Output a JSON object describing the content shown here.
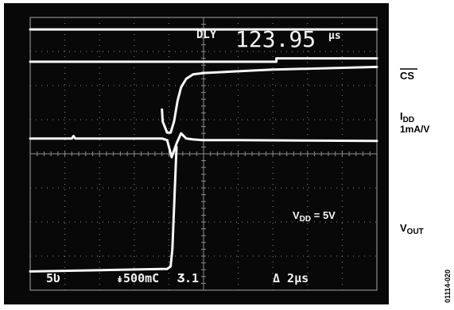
{
  "chart_data": {
    "type": "line",
    "title": "",
    "xlabel": "",
    "ylabel": "",
    "grid": true,
    "x_divisions": 10,
    "y_divisions": 8,
    "x_range": [
      0,
      10
    ],
    "y_range": [
      0,
      8
    ],
    "readout": {
      "label": "DLY",
      "value": "123.95",
      "unit": "µs"
    },
    "scale_readouts": [
      "5Ʋ",
      "↡500mC",
      "Ʒ.1",
      "Δ 2µs"
    ],
    "series": [
      {
        "key": "cs_upper",
        "x": [
          0,
          3.8,
          3.8,
          7.1,
          7.1,
          10
        ],
        "y": [
          7.65,
          7.65,
          7.65,
          7.65,
          7.65,
          7.65
        ]
      },
      {
        "key": "cs",
        "name": "CS",
        "x": [
          0,
          3.8,
          3.8,
          7.1,
          7.1,
          10
        ],
        "y": [
          6.7,
          6.7,
          6.7,
          6.7,
          6.8,
          6.8
        ]
      },
      {
        "key": "idd",
        "name": "IDD 1mA/V",
        "x": [
          3.8,
          3.82,
          3.95,
          4.05,
          4.15,
          4.25,
          4.35,
          4.5,
          4.7,
          5.0,
          6.0,
          7.0,
          10
        ],
        "y": [
          5.3,
          4.95,
          4.62,
          4.62,
          4.95,
          5.55,
          5.95,
          6.2,
          6.33,
          6.37,
          6.42,
          6.47,
          6.55
        ]
      },
      {
        "key": "vout",
        "name": "VOUT",
        "x": [
          0,
          1.2,
          1.25,
          1.3,
          3.8,
          3.95,
          4.08,
          4.22,
          4.35,
          4.5,
          4.7,
          5.0,
          6.0,
          10
        ],
        "y": [
          4.45,
          4.45,
          4.52,
          4.45,
          4.45,
          4.4,
          3.9,
          4.3,
          4.6,
          4.45,
          4.42,
          4.4,
          4.4,
          4.38
        ]
      },
      {
        "key": "vout_low",
        "x": [
          0,
          3.8,
          3.95,
          4.05,
          4.1,
          4.22
        ],
        "y": [
          0.55,
          0.62,
          0.62,
          0.7,
          1.2,
          4.2
        ]
      }
    ]
  },
  "labels": {
    "cs": "CS",
    "idd_main": "I",
    "idd_sub": "DD",
    "idd_scale": "1mA/V",
    "vout_main": "V",
    "vout_sub": "OUT",
    "vdd_main": "V",
    "vdd_sub": "DD",
    "vdd_value": " = 5V",
    "figure_code": "01114-020"
  },
  "colors": {
    "screen": "#080808",
    "grid": "#8c8c8c",
    "trace": "#f7f7f7",
    "label": "#000000"
  }
}
